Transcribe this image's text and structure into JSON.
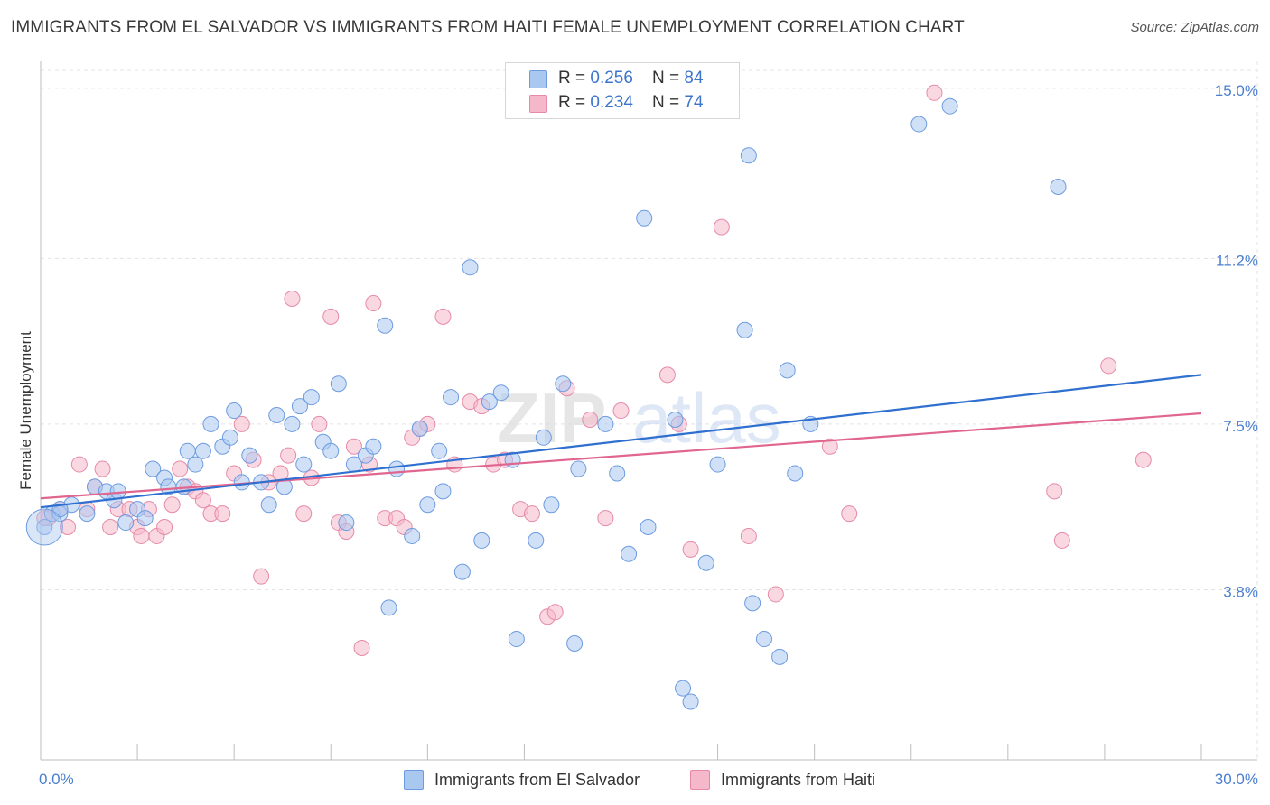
{
  "title": "IMMIGRANTS FROM EL SALVADOR VS IMMIGRANTS FROM HAITI FEMALE UNEMPLOYMENT CORRELATION CHART",
  "source": "Source: ZipAtlas.com",
  "watermark": "ZIPatlas",
  "legend": {
    "rows": [
      {
        "r_label": "R = ",
        "r_value": "0.256",
        "n_label": "N = ",
        "n_value": "84",
        "color": "#a9c8f0"
      },
      {
        "r_label": "R = ",
        "r_value": "0.234",
        "n_label": "N = ",
        "n_value": "74",
        "color": "#f5b8cb"
      }
    ]
  },
  "bottom_legend": {
    "series1": "Immigrants from El Salvador",
    "series2": "Immigrants from Haiti"
  },
  "colors": {
    "blue_fill": "#a9c8f0",
    "blue_stroke": "#6d9be0",
    "blue_line": "#2e6fcf",
    "pink_fill": "#f5b8cb",
    "pink_stroke": "#e68aa8",
    "pink_line": "#e0658f",
    "axis_text": "#4a7fd0",
    "grid": "#e3e3e3"
  },
  "chart_data": {
    "type": "scatter",
    "title": "IMMIGRANTS FROM EL SALVADOR VS IMMIGRANTS FROM HAITI FEMALE UNEMPLOYMENT CORRELATION CHART",
    "xlabel": "",
    "ylabel": "Female Unemployment",
    "xlim": [
      0,
      30
    ],
    "ylim": [
      0,
      15.4
    ],
    "x_tick_labels": [
      "0.0%",
      "30.0%"
    ],
    "y_ticks": [
      {
        "value": 3.8,
        "label": "3.8%"
      },
      {
        "value": 7.5,
        "label": "7.5%"
      },
      {
        "value": 11.2,
        "label": "11.2%"
      },
      {
        "value": 15.0,
        "label": "15.0%"
      }
    ],
    "series": [
      {
        "name": "Immigrants from El Salvador",
        "R": 0.256,
        "N": 84,
        "trend": {
          "x": [
            0,
            30
          ],
          "y": [
            5.64,
            8.6
          ]
        },
        "points": [
          [
            0.1,
            5.2
          ],
          [
            0.3,
            5.5
          ],
          [
            0.5,
            5.5
          ],
          [
            0.8,
            5.7
          ],
          [
            1.2,
            5.5
          ],
          [
            1.4,
            6.1
          ],
          [
            1.7,
            6.0
          ],
          [
            1.9,
            5.8
          ],
          [
            2.0,
            6.0
          ],
          [
            2.2,
            5.3
          ],
          [
            2.5,
            5.6
          ],
          [
            2.7,
            5.4
          ],
          [
            2.9,
            6.5
          ],
          [
            3.2,
            6.3
          ],
          [
            3.3,
            6.1
          ],
          [
            3.7,
            6.1
          ],
          [
            3.8,
            6.9
          ],
          [
            4.0,
            6.6
          ],
          [
            4.2,
            6.9
          ],
          [
            4.4,
            7.5
          ],
          [
            4.7,
            7.0
          ],
          [
            4.9,
            7.2
          ],
          [
            5.0,
            7.8
          ],
          [
            5.2,
            6.2
          ],
          [
            5.4,
            6.8
          ],
          [
            5.7,
            6.2
          ],
          [
            5.9,
            5.7
          ],
          [
            6.1,
            7.7
          ],
          [
            6.3,
            6.1
          ],
          [
            6.5,
            7.5
          ],
          [
            6.7,
            7.9
          ],
          [
            6.8,
            6.6
          ],
          [
            7.0,
            8.1
          ],
          [
            7.3,
            7.1
          ],
          [
            7.5,
            6.9
          ],
          [
            7.7,
            8.4
          ],
          [
            7.9,
            5.3
          ],
          [
            8.1,
            6.6
          ],
          [
            8.4,
            6.8
          ],
          [
            8.6,
            7.0
          ],
          [
            8.9,
            9.7
          ],
          [
            9.0,
            3.4
          ],
          [
            9.2,
            6.5
          ],
          [
            9.6,
            5.0
          ],
          [
            9.8,
            7.4
          ],
          [
            10.0,
            5.7
          ],
          [
            10.3,
            6.9
          ],
          [
            10.4,
            6.0
          ],
          [
            10.6,
            8.1
          ],
          [
            10.9,
            4.2
          ],
          [
            11.1,
            11.0
          ],
          [
            11.4,
            4.9
          ],
          [
            11.6,
            8.0
          ],
          [
            11.9,
            8.2
          ],
          [
            12.2,
            6.7
          ],
          [
            12.3,
            2.7
          ],
          [
            12.8,
            4.9
          ],
          [
            13.0,
            7.2
          ],
          [
            13.2,
            5.7
          ],
          [
            13.5,
            8.4
          ],
          [
            13.8,
            2.6
          ],
          [
            13.9,
            6.5
          ],
          [
            14.6,
            7.5
          ],
          [
            14.9,
            6.4
          ],
          [
            15.2,
            4.6
          ],
          [
            15.6,
            12.1
          ],
          [
            15.7,
            5.2
          ],
          [
            16.4,
            7.6
          ],
          [
            16.6,
            1.6
          ],
          [
            16.8,
            1.3
          ],
          [
            17.2,
            4.4
          ],
          [
            17.5,
            6.6
          ],
          [
            18.2,
            9.6
          ],
          [
            18.3,
            13.5
          ],
          [
            18.4,
            3.5
          ],
          [
            18.7,
            2.7
          ],
          [
            19.1,
            2.3
          ],
          [
            19.3,
            8.7
          ],
          [
            19.5,
            6.4
          ],
          [
            19.9,
            7.5
          ],
          [
            22.7,
            14.2
          ],
          [
            23.5,
            14.6
          ],
          [
            26.3,
            12.8
          ],
          [
            0.5,
            5.6
          ]
        ]
      },
      {
        "name": "Immigrants from Haiti",
        "R": 0.234,
        "N": 74,
        "trend": {
          "x": [
            0,
            30
          ],
          "y": [
            5.84,
            7.74
          ]
        },
        "points": [
          [
            0.2,
            5.4
          ],
          [
            0.5,
            5.6
          ],
          [
            0.7,
            5.2
          ],
          [
            1.0,
            6.6
          ],
          [
            1.2,
            5.6
          ],
          [
            1.4,
            6.1
          ],
          [
            1.6,
            6.5
          ],
          [
            1.8,
            5.2
          ],
          [
            2.0,
            5.6
          ],
          [
            2.3,
            5.6
          ],
          [
            2.5,
            5.2
          ],
          [
            2.6,
            5.0
          ],
          [
            2.8,
            5.6
          ],
          [
            3.0,
            5.0
          ],
          [
            3.2,
            5.2
          ],
          [
            3.4,
            5.7
          ],
          [
            3.6,
            6.5
          ],
          [
            3.8,
            6.1
          ],
          [
            4.0,
            6.0
          ],
          [
            4.2,
            5.8
          ],
          [
            4.4,
            5.5
          ],
          [
            4.7,
            5.5
          ],
          [
            5.0,
            6.4
          ],
          [
            5.2,
            7.5
          ],
          [
            5.5,
            6.7
          ],
          [
            5.7,
            4.1
          ],
          [
            5.9,
            6.2
          ],
          [
            6.2,
            6.4
          ],
          [
            6.4,
            6.8
          ],
          [
            6.5,
            10.3
          ],
          [
            6.8,
            5.5
          ],
          [
            7.0,
            6.3
          ],
          [
            7.2,
            7.5
          ],
          [
            7.5,
            9.9
          ],
          [
            7.7,
            5.3
          ],
          [
            7.9,
            5.1
          ],
          [
            8.1,
            7.0
          ],
          [
            8.3,
            2.5
          ],
          [
            8.5,
            6.6
          ],
          [
            8.6,
            10.2
          ],
          [
            8.9,
            5.4
          ],
          [
            9.2,
            5.4
          ],
          [
            9.4,
            5.2
          ],
          [
            9.6,
            7.2
          ],
          [
            9.8,
            7.4
          ],
          [
            10.0,
            7.5
          ],
          [
            10.4,
            9.9
          ],
          [
            10.7,
            6.6
          ],
          [
            11.1,
            8.0
          ],
          [
            11.4,
            7.9
          ],
          [
            11.7,
            6.6
          ],
          [
            12.0,
            6.7
          ],
          [
            12.4,
            5.6
          ],
          [
            12.7,
            5.5
          ],
          [
            13.1,
            3.2
          ],
          [
            13.3,
            3.3
          ],
          [
            13.6,
            8.3
          ],
          [
            14.2,
            7.6
          ],
          [
            14.6,
            5.4
          ],
          [
            15.0,
            7.8
          ],
          [
            16.2,
            8.6
          ],
          [
            16.5,
            7.5
          ],
          [
            16.8,
            4.7
          ],
          [
            17.6,
            11.9
          ],
          [
            18.3,
            5.0
          ],
          [
            19.0,
            3.7
          ],
          [
            20.4,
            7.0
          ],
          [
            20.9,
            5.5
          ],
          [
            23.1,
            14.9
          ],
          [
            26.2,
            6.0
          ],
          [
            26.4,
            4.9
          ],
          [
            27.6,
            8.8
          ],
          [
            28.5,
            6.7
          ],
          [
            0.1,
            5.4
          ]
        ]
      }
    ]
  }
}
